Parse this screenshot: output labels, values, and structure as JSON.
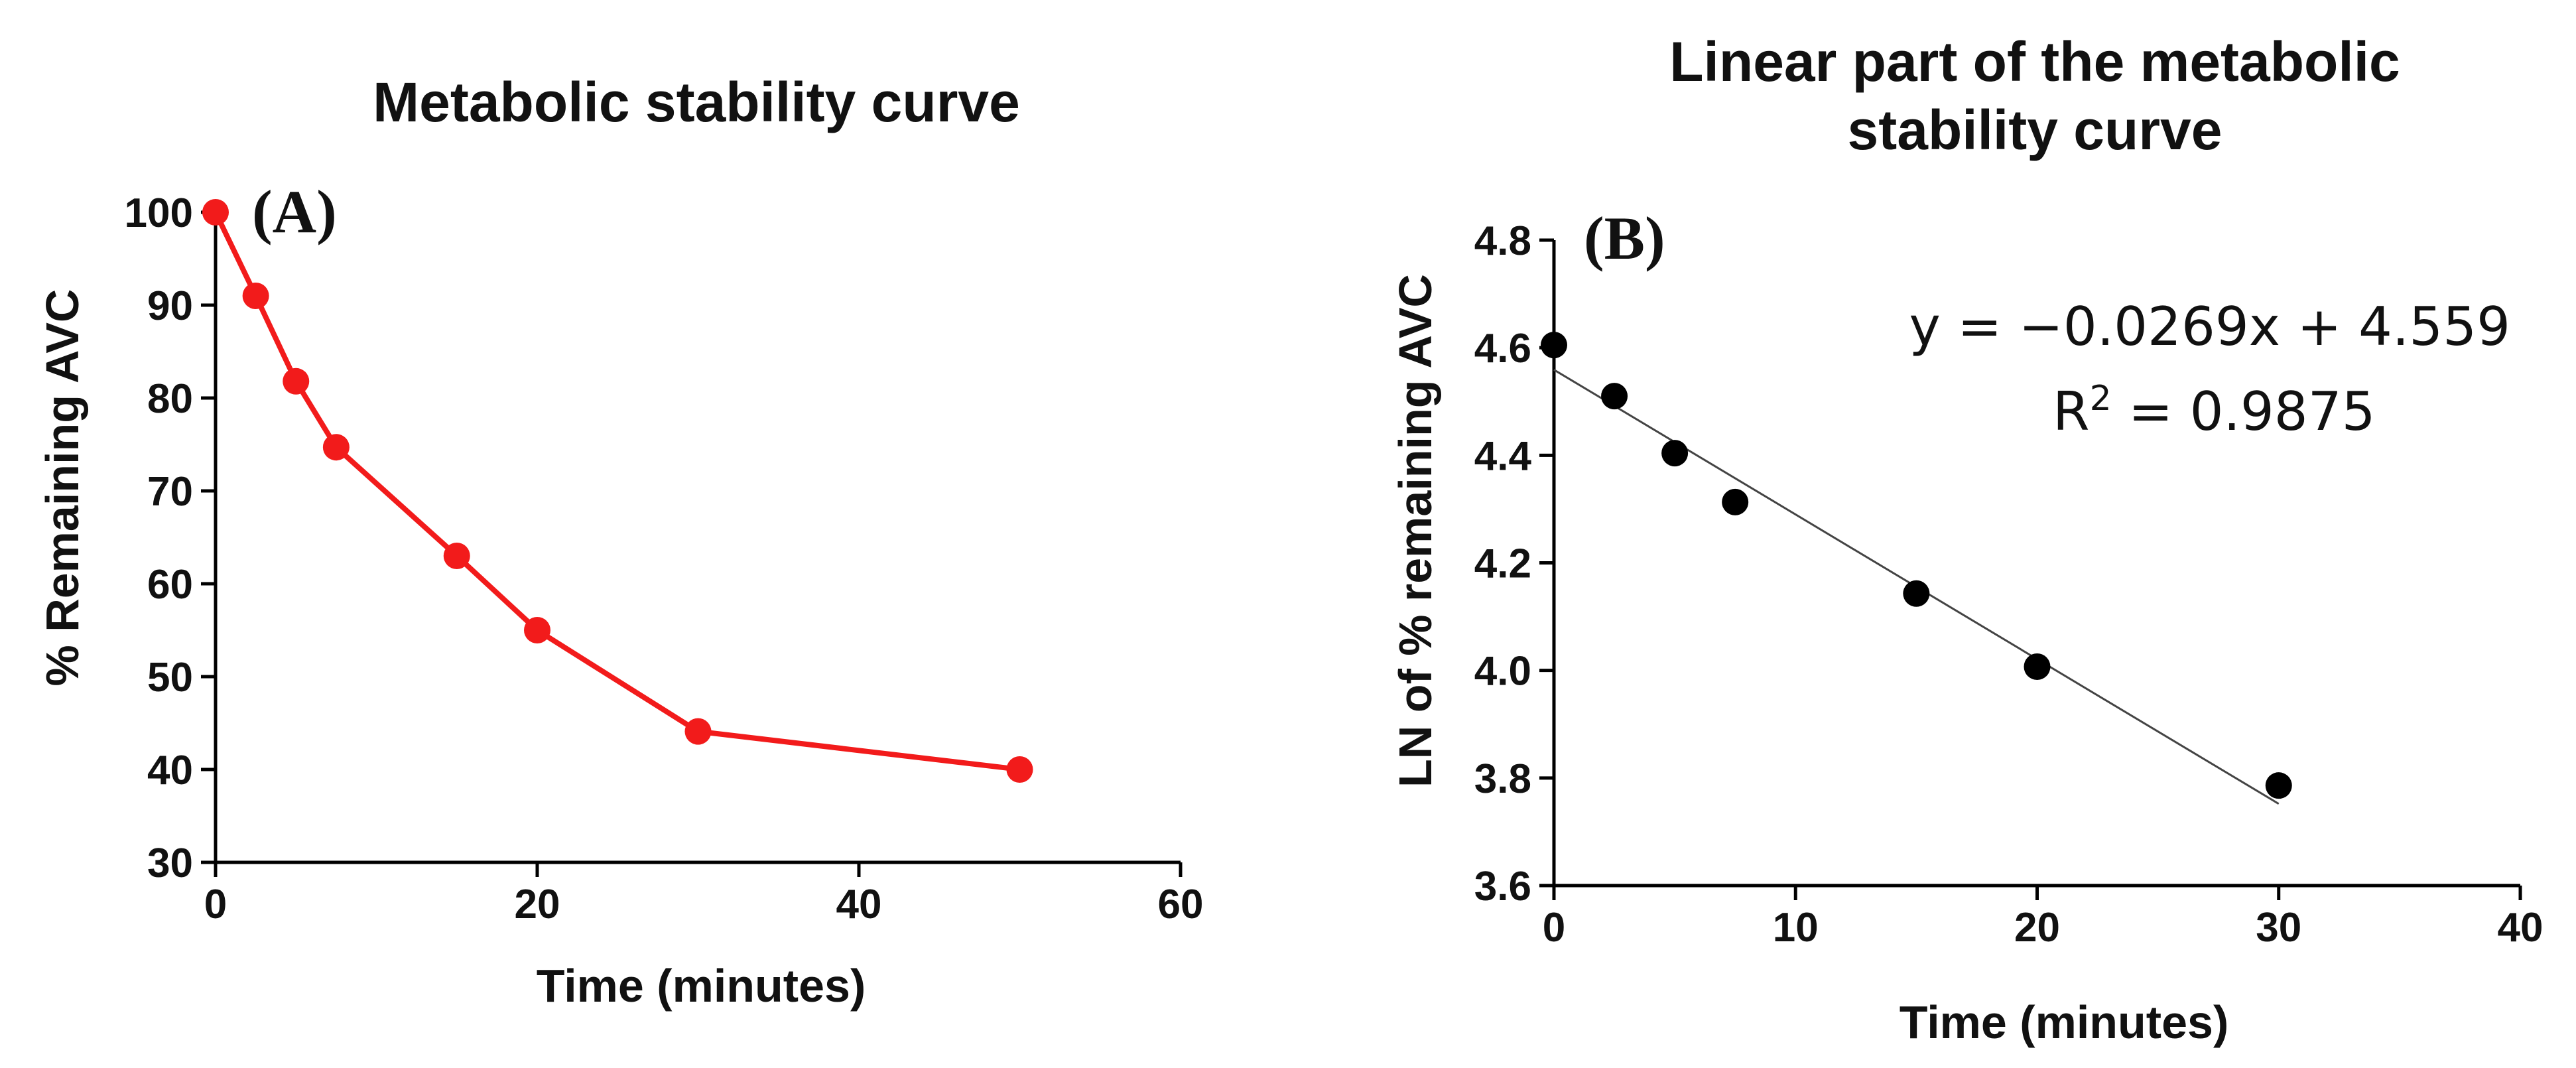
{
  "chart_data": [
    {
      "type": "line",
      "title": "Metabolic stability curve",
      "panel_label": "(A)",
      "xlabel": "Time (minutes)",
      "ylabel": "% Remaining AVC",
      "xlim": [
        0,
        60
      ],
      "ylim": [
        30,
        100
      ],
      "xticks": [
        0,
        20,
        40,
        60
      ],
      "yticks": [
        30,
        40,
        50,
        60,
        70,
        80,
        90,
        100
      ],
      "grid": false,
      "color": "#f21b1b",
      "series": [
        {
          "name": "% Remaining AVC",
          "x": [
            0,
            2.5,
            5,
            7.5,
            15,
            20,
            30,
            50
          ],
          "y": [
            100,
            91,
            81.8,
            74.7,
            63,
            55,
            44.1,
            40
          ]
        }
      ]
    },
    {
      "type": "scatter",
      "title": "Linear part of the metabolic stability curve",
      "title_lines": [
        "Linear part of the metabolic",
        "stability curve"
      ],
      "panel_label": "(B)",
      "xlabel": "Time (minutes)",
      "ylabel": "LN of % remaining AVC",
      "xlim": [
        0,
        40
      ],
      "ylim": [
        3.6,
        4.8
      ],
      "xticks": [
        "0",
        "10",
        "20",
        "30",
        "40"
      ],
      "yticks": [
        "3.6",
        "3.8",
        "4.0",
        "4.2",
        "4.4",
        "4.6",
        "4.8"
      ],
      "grid": false,
      "color": "#000000",
      "series": [
        {
          "name": "LN of % remaining AVC",
          "x": [
            0,
            2.5,
            5,
            7.5,
            15,
            20,
            30
          ],
          "y": [
            4.605,
            4.51,
            4.404,
            4.313,
            4.143,
            4.007,
            3.786
          ]
        }
      ],
      "trendline": {
        "slope": -0.0269,
        "intercept": 4.559,
        "x_range": [
          0,
          30
        ]
      },
      "equation": "y = −0.0269x + 4.559",
      "r2_prefix": "R",
      "r2_sup": "2",
      "r2_value": " = 0.9875"
    }
  ]
}
